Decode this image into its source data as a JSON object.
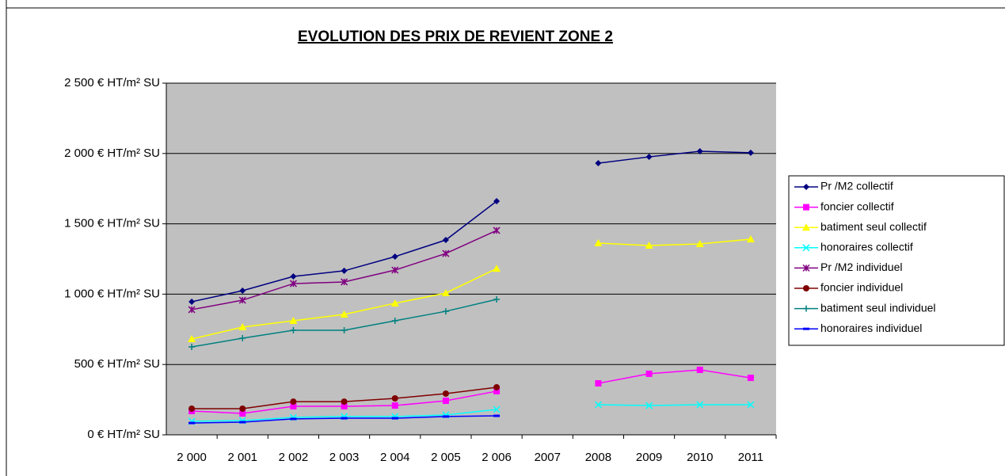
{
  "chart_data": {
    "type": "line",
    "title": "EVOLUTION DES PRIX DE REVIENT ZONE 2",
    "categories": [
      "2 000",
      "2 001",
      "2 002",
      "2 003",
      "2 004",
      "2 005",
      "2 006",
      "2007",
      "2008",
      "2009",
      "2010",
      "2011"
    ],
    "ylim": [
      0,
      2500
    ],
    "yticks": [
      {
        "value": 0,
        "label": "0 € HT/m² SU"
      },
      {
        "value": 500,
        "label": "500 € HT/m² SU"
      },
      {
        "value": 1000,
        "label": "1 000 € HT/m² SU"
      },
      {
        "value": 1500,
        "label": "1 500 € HT/m² SU"
      },
      {
        "value": 2000,
        "label": "2 000 € HT/m² SU"
      },
      {
        "value": 2500,
        "label": "2 500 € HT/m² SU"
      }
    ],
    "grid": true,
    "legend": "right",
    "series": [
      {
        "name": "Pr /M2 collectif",
        "color": "#000080",
        "marker": "diamond",
        "values": [
          946,
          1025,
          1126,
          1166,
          1267,
          1385,
          1661,
          null,
          1931,
          1976,
          2016,
          2005
        ]
      },
      {
        "name": "foncier collectif",
        "color": "#ff00ff",
        "marker": "square",
        "values": [
          169,
          152,
          203,
          203,
          208,
          242,
          310,
          null,
          366,
          434,
          462,
          405
        ]
      },
      {
        "name": "batiment seul collectif",
        "color": "#ffff00",
        "marker": "triangle",
        "values": [
          681,
          766,
          811,
          856,
          935,
          1008,
          1182,
          null,
          1363,
          1346,
          1357,
          1391
        ]
      },
      {
        "name": "honoraires collectif",
        "color": "#00ffff",
        "marker": "x",
        "values": [
          96,
          101,
          124,
          130,
          130,
          141,
          180,
          null,
          214,
          208,
          214,
          214
        ]
      },
      {
        "name": "Pr /M2 individuel",
        "color": "#800080",
        "marker": "star",
        "values": [
          890,
          957,
          1075,
          1087,
          1171,
          1289,
          1453,
          null,
          null,
          null,
          null,
          null
        ]
      },
      {
        "name": "foncier individuel",
        "color": "#800000",
        "marker": "circle",
        "values": [
          186,
          186,
          236,
          236,
          259,
          293,
          338,
          null,
          null,
          null,
          null,
          null
        ]
      },
      {
        "name": "batiment seul individuel",
        "color": "#008080",
        "marker": "plus",
        "values": [
          625,
          687,
          743,
          743,
          811,
          878,
          963,
          null,
          null,
          null,
          null,
          null
        ]
      },
      {
        "name": "honoraires individuel",
        "color": "#0000ff",
        "marker": "dash",
        "values": [
          84,
          90,
          113,
          118,
          118,
          130,
          135,
          null,
          null,
          null,
          null,
          null
        ]
      }
    ]
  }
}
